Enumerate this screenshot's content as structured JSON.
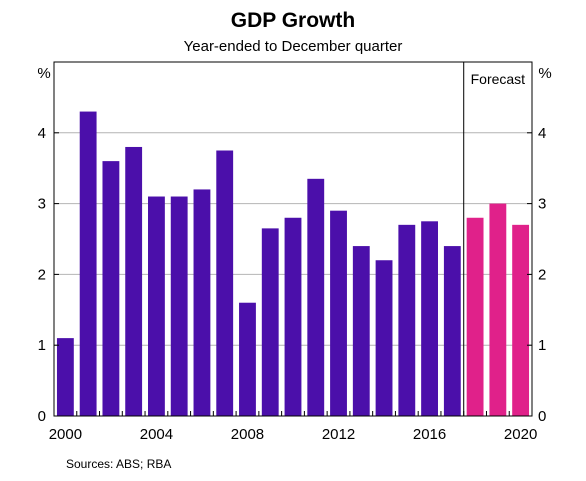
{
  "chart_data": {
    "type": "bar",
    "title": "GDP Growth",
    "subtitle": "Year-ended to December quarter",
    "y_unit_left": "%",
    "y_unit_right": "%",
    "ylim": [
      0,
      5
    ],
    "yticks": [
      0,
      1,
      2,
      3,
      4
    ],
    "xticks": [
      "2000",
      "2004",
      "2008",
      "2012",
      "2016",
      "2020"
    ],
    "grid": true,
    "categories": [
      "2000",
      "2001",
      "2002",
      "2003",
      "2004",
      "2005",
      "2006",
      "2007",
      "2008",
      "2009",
      "2010",
      "2011",
      "2012",
      "2013",
      "2014",
      "2015",
      "2016",
      "2017",
      "2018",
      "2019",
      "2020"
    ],
    "series": [
      {
        "values": [
          1.1,
          4.3,
          3.6,
          3.8,
          3.1,
          3.1,
          3.2,
          3.75,
          1.6,
          2.65,
          2.8,
          3.35,
          2.9,
          2.4,
          2.2,
          2.7,
          2.75,
          2.4,
          null,
          null,
          null
        ],
        "color": "#4b0faa"
      },
      {
        "values": [
          null,
          null,
          null,
          null,
          null,
          null,
          null,
          null,
          null,
          null,
          null,
          null,
          null,
          null,
          null,
          null,
          null,
          null,
          2.8,
          3.0,
          2.7
        ],
        "color": "#e0218a"
      }
    ],
    "forecast_label": "Forecast",
    "forecast_divider_after": "2017",
    "source_note": "Sources:    ABS; RBA"
  }
}
